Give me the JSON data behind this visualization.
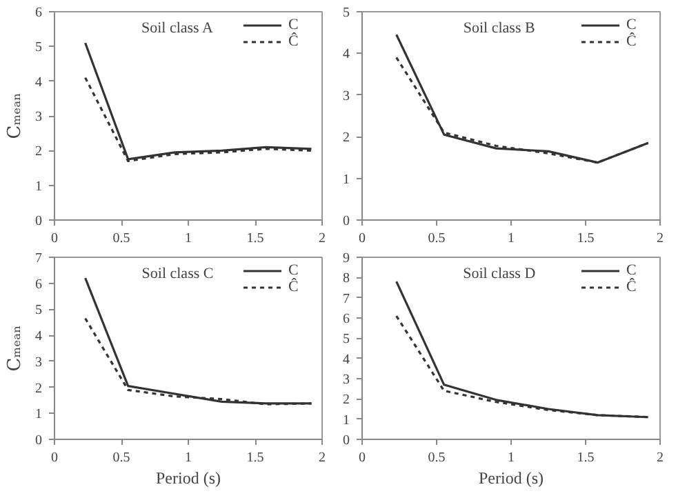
{
  "chart_data": [
    {
      "type": "line",
      "annotations": [
        "Soil class A"
      ],
      "ylabel": "Cₘₑₐₙ",
      "x": [
        0.23,
        0.55,
        0.9,
        1.25,
        1.58,
        1.92
      ],
      "xlim": [
        0,
        2
      ],
      "xticks": [
        0,
        0.5,
        1,
        1.5,
        2
      ],
      "ylim": [
        0,
        6
      ],
      "yticks": [
        0,
        1,
        2,
        3,
        4,
        5,
        6
      ],
      "legend": "top right",
      "grid": false,
      "series": [
        {
          "name": "C",
          "color": "#333333",
          "line_style": "solid",
          "values": [
            5.1,
            1.75,
            1.95,
            2.0,
            2.1,
            2.05
          ]
        },
        {
          "name": "Ĉ",
          "color": "#333333",
          "line_style": "dotted",
          "values": [
            4.1,
            1.7,
            1.9,
            1.95,
            2.05,
            2.0
          ]
        }
      ]
    },
    {
      "type": "line",
      "annotations": [
        "Soil class B"
      ],
      "x": [
        0.23,
        0.55,
        0.9,
        1.25,
        1.58,
        1.92
      ],
      "xlim": [
        0,
        2
      ],
      "xticks": [
        0,
        0.5,
        1,
        1.5,
        2
      ],
      "ylim": [
        0,
        5
      ],
      "yticks": [
        0,
        1,
        2,
        3,
        4,
        5
      ],
      "legend": "top right",
      "grid": false,
      "series": [
        {
          "name": "C",
          "color": "#333333",
          "line_style": "solid",
          "values": [
            4.45,
            2.05,
            1.72,
            1.65,
            1.38,
            1.85
          ]
        },
        {
          "name": "Ĉ",
          "color": "#333333",
          "line_style": "dotted",
          "values": [
            3.9,
            2.1,
            1.78,
            1.6,
            1.38,
            1.85
          ]
        }
      ]
    },
    {
      "type": "line",
      "annotations": [
        "Soil class C"
      ],
      "ylabel": "Cₘₑₐₙ",
      "xlabel": "Period (s)",
      "x": [
        0.23,
        0.55,
        0.9,
        1.25,
        1.58,
        1.92
      ],
      "xlim": [
        0,
        2
      ],
      "xticks": [
        0,
        0.5,
        1,
        1.5,
        2
      ],
      "ylim": [
        0,
        7
      ],
      "yticks": [
        0,
        1,
        2,
        3,
        4,
        5,
        6,
        7
      ],
      "legend": "top right",
      "grid": false,
      "series": [
        {
          "name": "C",
          "color": "#333333",
          "line_style": "solid",
          "values": [
            6.2,
            2.05,
            1.75,
            1.45,
            1.38,
            1.38
          ]
        },
        {
          "name": "Ĉ",
          "color": "#333333",
          "line_style": "dotted",
          "values": [
            4.65,
            1.9,
            1.65,
            1.55,
            1.35,
            1.38
          ]
        }
      ]
    },
    {
      "type": "line",
      "annotations": [
        "Soil class D"
      ],
      "xlabel": "Period (s)",
      "x": [
        0.23,
        0.55,
        0.9,
        1.25,
        1.58,
        1.92
      ],
      "xlim": [
        0,
        2
      ],
      "xticks": [
        0,
        0.5,
        1,
        1.5,
        2
      ],
      "ylim": [
        0,
        9
      ],
      "yticks": [
        0,
        1,
        2,
        3,
        4,
        5,
        6,
        7,
        8,
        9
      ],
      "legend": "top right",
      "grid": false,
      "series": [
        {
          "name": "C",
          "color": "#333333",
          "line_style": "solid",
          "values": [
            7.8,
            2.7,
            1.95,
            1.5,
            1.2,
            1.1
          ]
        },
        {
          "name": "Ĉ",
          "color": "#333333",
          "line_style": "dotted",
          "values": [
            6.1,
            2.4,
            1.85,
            1.45,
            1.2,
            1.1
          ]
        }
      ]
    }
  ]
}
